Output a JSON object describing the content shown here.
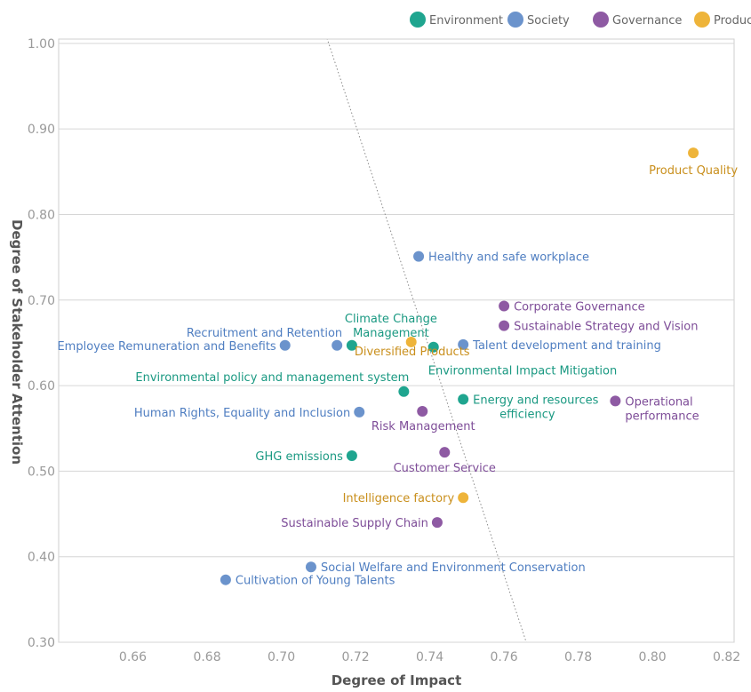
{
  "chart_data": {
    "type": "scatter",
    "xlabel": "Degree of Impact",
    "ylabel": "Degree of Stakeholder Attention",
    "xlim": [
      0.64,
      0.822
    ],
    "ylim": [
      0.3,
      1.005
    ],
    "x_ticks": [
      "0.66",
      "0.68",
      "0.70",
      "0.72",
      "0.74",
      "0.76",
      "0.78",
      "0.80",
      "0.82"
    ],
    "y_ticks": [
      "0.30",
      "0.40",
      "0.50",
      "0.60",
      "0.70",
      "0.80",
      "0.90",
      "1.00"
    ],
    "grid": "horizontal",
    "legend_position": "top-right",
    "categories": [
      {
        "name": "Environment",
        "color": "#1fa58f"
      },
      {
        "name": "Society",
        "color": "#6b93cc"
      },
      {
        "name": "Governance",
        "color": "#8e5aa3"
      },
      {
        "name": "Products",
        "color": "#eeb43a"
      }
    ],
    "label_colors": {
      "Environment": "#1a9982",
      "Society": "#4f7ec1",
      "Governance": "#7e4d98",
      "Products": "#c98f1c"
    },
    "reference_line": {
      "style": "dotted",
      "from": [
        0.712,
        1.01
      ],
      "to": [
        0.766,
        0.3
      ]
    },
    "points": [
      {
        "label": "Product Quality",
        "x": 0.811,
        "y": 0.872,
        "category": "Products"
      },
      {
        "label": "Healthy and safe workplace",
        "x": 0.737,
        "y": 0.751,
        "category": "Society"
      },
      {
        "label": "Corporate Governance",
        "x": 0.76,
        "y": 0.693,
        "category": "Governance"
      },
      {
        "label": "Sustainable Strategy and Vision",
        "x": 0.76,
        "y": 0.67,
        "category": "Governance"
      },
      {
        "label": "Recruitment and Retention",
        "x": 0.715,
        "y": 0.647,
        "category": "Society"
      },
      {
        "label": "Employee Remuneration and Benefits",
        "x": 0.701,
        "y": 0.647,
        "category": "Society"
      },
      {
        "label": "Climate Change Management",
        "x": 0.719,
        "y": 0.647,
        "category": "Environment"
      },
      {
        "label": "Diversified Products",
        "x": 0.735,
        "y": 0.651,
        "category": "Products"
      },
      {
        "label": "Environmental Impact Mitigation",
        "x": 0.741,
        "y": 0.645,
        "category": "Environment"
      },
      {
        "label": "Talent development and training",
        "x": 0.749,
        "y": 0.648,
        "category": "Society"
      },
      {
        "label": "Environmental policy and management system",
        "x": 0.733,
        "y": 0.593,
        "category": "Environment"
      },
      {
        "label": "Energy and resources efficiency",
        "x": 0.749,
        "y": 0.584,
        "category": "Environment"
      },
      {
        "label": "Operational performance",
        "x": 0.79,
        "y": 0.582,
        "category": "Governance"
      },
      {
        "label": "Human Rights, Equality and Inclusion",
        "x": 0.721,
        "y": 0.569,
        "category": "Society"
      },
      {
        "label": "Risk Management",
        "x": 0.738,
        "y": 0.57,
        "category": "Governance"
      },
      {
        "label": "Customer Service",
        "x": 0.744,
        "y": 0.522,
        "category": "Governance"
      },
      {
        "label": "GHG emissions",
        "x": 0.719,
        "y": 0.518,
        "category": "Environment"
      },
      {
        "label": "Intelligence factory",
        "x": 0.749,
        "y": 0.469,
        "category": "Products"
      },
      {
        "label": "Sustainable Supply Chain",
        "x": 0.742,
        "y": 0.44,
        "category": "Governance"
      },
      {
        "label": "Social Welfare and Environment Conservation",
        "x": 0.708,
        "y": 0.388,
        "category": "Society"
      },
      {
        "label": "Cultivation of Young Talents",
        "x": 0.685,
        "y": 0.373,
        "category": "Society"
      }
    ]
  }
}
